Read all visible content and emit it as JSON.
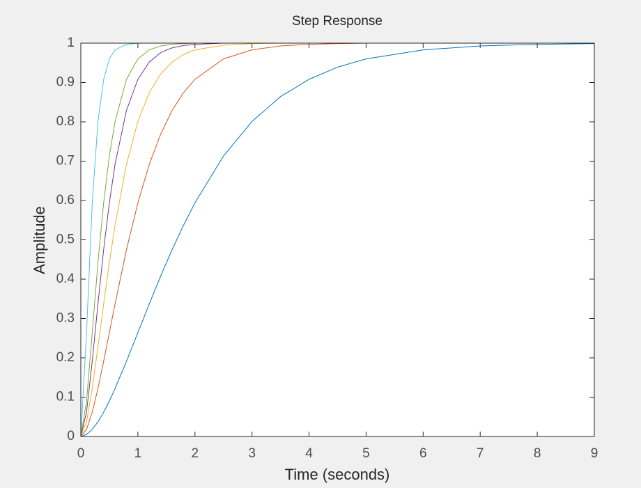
{
  "chart_data": {
    "type": "line",
    "title": "Step Response",
    "x_label": "Time (seconds)",
    "y_label": "Amplitude",
    "x": [
      0,
      0.1,
      0.2,
      0.3,
      0.4,
      0.5,
      0.6,
      0.8,
      1,
      1.2,
      1.4,
      1.6,
      1.8,
      2,
      2.5,
      3,
      3.5,
      4,
      4.5,
      5,
      6,
      7,
      8,
      9
    ],
    "series": [
      {
        "color": "#0072BD",
        "values": [
          0,
          0.005,
          0.018,
          0.037,
          0.062,
          0.09,
          0.122,
          0.191,
          0.264,
          0.337,
          0.408,
          0.475,
          0.537,
          0.594,
          0.713,
          0.801,
          0.864,
          0.908,
          0.939,
          0.96,
          0.983,
          0.993,
          0.997,
          0.999
        ]
      },
      {
        "color": "#D95319",
        "values": [
          0,
          0.018,
          0.062,
          0.122,
          0.191,
          0.264,
          0.337,
          0.475,
          0.594,
          0.692,
          0.769,
          0.829,
          0.874,
          0.908,
          0.96,
          0.983,
          0.993,
          0.997,
          0.999,
          1,
          1,
          1,
          1,
          1
        ]
      },
      {
        "color": "#EDB120",
        "values": [
          0,
          0.037,
          0.122,
          0.228,
          0.337,
          0.442,
          0.537,
          0.692,
          0.801,
          0.874,
          0.922,
          0.952,
          0.971,
          0.983,
          0.995,
          0.999,
          1,
          1,
          1,
          1,
          1,
          1,
          1,
          1
        ]
      },
      {
        "color": "#7E2F8E",
        "values": [
          0,
          0.062,
          0.191,
          0.337,
          0.475,
          0.594,
          0.692,
          0.829,
          0.908,
          0.952,
          0.976,
          0.988,
          0.994,
          0.997,
          1,
          1,
          1,
          1,
          1,
          1,
          1,
          1,
          1,
          1
        ]
      },
      {
        "color": "#77AC30",
        "values": [
          0,
          0.09,
          0.264,
          0.442,
          0.594,
          0.713,
          0.801,
          0.908,
          0.96,
          0.983,
          0.993,
          0.997,
          0.999,
          1,
          1,
          1,
          1,
          1,
          1,
          1,
          1,
          1,
          1,
          1
        ]
      },
      {
        "color": "#4DBEEE",
        "values": [
          0,
          0.264,
          0.594,
          0.801,
          0.908,
          0.96,
          0.983,
          0.997,
          1,
          1,
          1,
          1,
          1,
          1,
          1,
          1,
          1,
          1,
          1,
          1,
          1,
          1,
          1,
          1
        ]
      }
    ],
    "xlim": [
      0,
      9
    ],
    "xticks": [
      0,
      1,
      2,
      3,
      4,
      5,
      6,
      7,
      8,
      9
    ],
    "ylim": [
      0,
      1
    ],
    "yticks": [
      0,
      0.1,
      0.2,
      0.3,
      0.4,
      0.5,
      0.6,
      0.7,
      0.8,
      0.9,
      1
    ]
  }
}
